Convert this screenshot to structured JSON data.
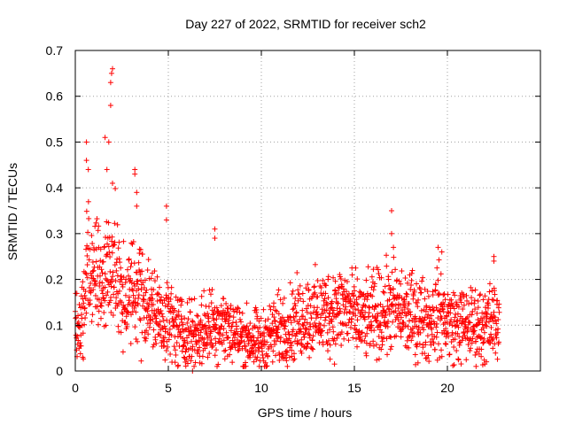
{
  "chart_data": {
    "type": "scatter",
    "title": "Day 227 of 2022, SRMTID for receiver sch2",
    "xlabel": "GPS time / hours",
    "ylabel": "SRMTID / TECUs",
    "xlim": [
      0,
      25
    ],
    "ylim": [
      0,
      0.7
    ],
    "xticks": [
      0,
      5,
      10,
      15,
      20
    ],
    "yticks": [
      0,
      0.1,
      0.2,
      0.3,
      0.4,
      0.5,
      0.6,
      0.7
    ],
    "xtick_labels": [
      "0",
      "5",
      "10",
      "15",
      "20"
    ],
    "ytick_labels": [
      "0",
      "0.1",
      "0.2",
      "0.3",
      "0.4",
      "0.5",
      "0.6",
      "0.7"
    ],
    "grid": true,
    "marker": "+",
    "color": "#ff0000",
    "series": [
      {
        "name": "SRMTID",
        "profile_hours": [
          0,
          0.3,
          0.6,
          1.0,
          1.5,
          2.0,
          2.5,
          3.0,
          3.5,
          4.0,
          4.5,
          5.0,
          5.5,
          6.0,
          6.5,
          7.0,
          7.5,
          8.0,
          8.5,
          9.0,
          9.5,
          10.0,
          10.5,
          11.0,
          11.5,
          12.0,
          12.5,
          13.0,
          13.5,
          14.0,
          14.5,
          15.0,
          15.5,
          16.0,
          16.5,
          17.0,
          17.5,
          18.0,
          18.5,
          19.0,
          19.5,
          20.0,
          20.5,
          21.0,
          21.5,
          22.0,
          22.5,
          22.8
        ],
        "profile_mean": [
          0.09,
          0.1,
          0.2,
          0.22,
          0.2,
          0.25,
          0.15,
          0.17,
          0.18,
          0.14,
          0.12,
          0.11,
          0.09,
          0.08,
          0.08,
          0.09,
          0.11,
          0.1,
          0.09,
          0.07,
          0.07,
          0.06,
          0.08,
          0.09,
          0.1,
          0.11,
          0.12,
          0.12,
          0.13,
          0.13,
          0.14,
          0.12,
          0.11,
          0.12,
          0.13,
          0.14,
          0.13,
          0.12,
          0.12,
          0.11,
          0.13,
          0.11,
          0.1,
          0.1,
          0.1,
          0.1,
          0.11,
          0.09
        ],
        "outliers": [
          {
            "x": 0.6,
            "y": 0.5
          },
          {
            "x": 0.6,
            "y": 0.46
          },
          {
            "x": 0.7,
            "y": 0.44
          },
          {
            "x": 1.6,
            "y": 0.51
          },
          {
            "x": 1.8,
            "y": 0.5
          },
          {
            "x": 1.9,
            "y": 0.58
          },
          {
            "x": 1.9,
            "y": 0.63
          },
          {
            "x": 1.95,
            "y": 0.65
          },
          {
            "x": 2.0,
            "y": 0.66
          },
          {
            "x": 1.7,
            "y": 0.44
          },
          {
            "x": 2.0,
            "y": 0.41
          },
          {
            "x": 3.2,
            "y": 0.44
          },
          {
            "x": 3.2,
            "y": 0.43
          },
          {
            "x": 3.3,
            "y": 0.39
          },
          {
            "x": 3.3,
            "y": 0.36
          },
          {
            "x": 4.9,
            "y": 0.36
          },
          {
            "x": 4.9,
            "y": 0.33
          },
          {
            "x": 7.5,
            "y": 0.31
          },
          {
            "x": 7.5,
            "y": 0.29
          },
          {
            "x": 17.0,
            "y": 0.35
          },
          {
            "x": 17.0,
            "y": 0.3
          },
          {
            "x": 17.1,
            "y": 0.27
          },
          {
            "x": 19.5,
            "y": 0.27
          },
          {
            "x": 19.7,
            "y": 0.26
          },
          {
            "x": 22.5,
            "y": 0.25
          },
          {
            "x": 22.5,
            "y": 0.24
          },
          {
            "x": 6.3,
            "y": 0.0
          },
          {
            "x": 22.1,
            "y": 0.02
          },
          {
            "x": 0.4,
            "y": 0.03
          },
          {
            "x": 9.6,
            "y": 0.02
          }
        ]
      }
    ]
  }
}
